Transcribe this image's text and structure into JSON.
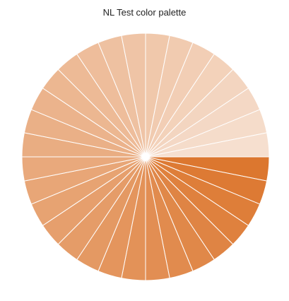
{
  "chart_data": {
    "type": "pie",
    "title": "NL Test color palette",
    "slice_count": 32,
    "values": [
      1,
      1,
      1,
      1,
      1,
      1,
      1,
      1,
      1,
      1,
      1,
      1,
      1,
      1,
      1,
      1,
      1,
      1,
      1,
      1,
      1,
      1,
      1,
      1,
      1,
      1,
      1,
      1,
      1,
      1,
      1,
      1
    ],
    "start": "3 o'clock, clockwise",
    "color_start": "#dc772f",
    "color_end": "#f6dfcf",
    "slice_border": "#ffffff"
  }
}
